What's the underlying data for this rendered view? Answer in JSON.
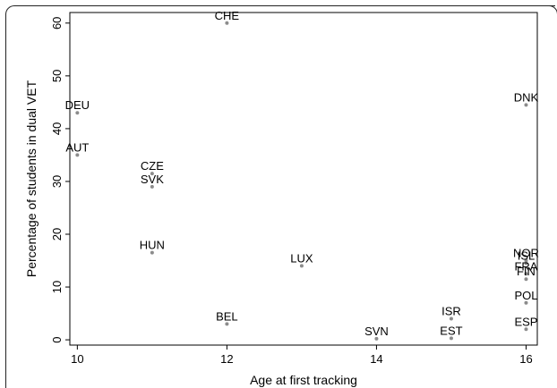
{
  "chart_data": {
    "type": "scatter",
    "xlabel": "Age at first tracking",
    "ylabel": "Percentage of students in dual VET",
    "xlim": [
      9.9,
      16.15
    ],
    "ylim": [
      -1,
      62
    ],
    "xticks": [
      "10",
      "12",
      "14",
      "16"
    ],
    "yticks": [
      "0",
      "10",
      "20",
      "30",
      "40",
      "50",
      "60"
    ],
    "grid": false,
    "marker_color": "#8c8c8c",
    "points": [
      {
        "label": "CHE",
        "x": 12,
        "y": 60
      },
      {
        "label": "DEU",
        "x": 10,
        "y": 43
      },
      {
        "label": "DNK",
        "x": 16,
        "y": 44.5
      },
      {
        "label": "AUT",
        "x": 10,
        "y": 35
      },
      {
        "label": "CZE",
        "x": 11,
        "y": 31.5
      },
      {
        "label": "SVK",
        "x": 11,
        "y": 29
      },
      {
        "label": "HUN",
        "x": 11,
        "y": 16.5
      },
      {
        "label": "LUX",
        "x": 13,
        "y": 14
      },
      {
        "label": "NOR",
        "x": 16,
        "y": 15
      },
      {
        "label": "ISL",
        "x": 16,
        "y": 14.5
      },
      {
        "label": "FRA",
        "x": 16,
        "y": 12.5
      },
      {
        "label": "FIN",
        "x": 16,
        "y": 11.5
      },
      {
        "label": "POL",
        "x": 16,
        "y": 7
      },
      {
        "label": "BEL",
        "x": 12,
        "y": 3
      },
      {
        "label": "ISR",
        "x": 15,
        "y": 4
      },
      {
        "label": "ESP",
        "x": 16,
        "y": 2
      },
      {
        "label": "SVN",
        "x": 14,
        "y": 0.2
      },
      {
        "label": "EST",
        "x": 15,
        "y": 0.3
      }
    ]
  }
}
